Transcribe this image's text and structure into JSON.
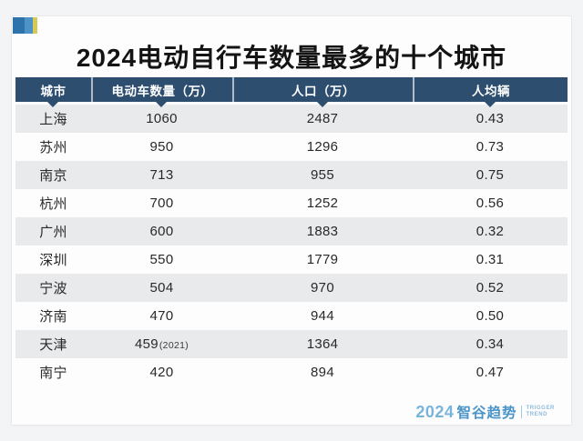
{
  "page": {
    "title": "2024电动自行车数量最多的十个城市"
  },
  "colors": {
    "header_navy": "#2d4e6e",
    "row_alt_gray": "#e9eaec",
    "icon_blue_dark": "#2e72ab",
    "icon_blue_light": "#4e93c6",
    "icon_yellow": "#d6c954",
    "logo_blue": "#4a94c8",
    "logo_light_blue": "#79b5da"
  },
  "chart_data": {
    "type": "table",
    "title": "2024电动自行车数量最多的十个城市",
    "columns": [
      "城市",
      "电动车数量（万）",
      "人口（万）",
      "人均辆"
    ],
    "rows": [
      {
        "city": "上海",
        "ebikes": "1060",
        "note": "",
        "population": "2487",
        "per_capita": "0.43"
      },
      {
        "city": "苏州",
        "ebikes": "950",
        "note": "",
        "population": "1296",
        "per_capita": "0.73"
      },
      {
        "city": "南京",
        "ebikes": "713",
        "note": "",
        "population": "955",
        "per_capita": "0.75"
      },
      {
        "city": "杭州",
        "ebikes": "700",
        "note": "",
        "population": "1252",
        "per_capita": "0.56"
      },
      {
        "city": "广州",
        "ebikes": "600",
        "note": "",
        "population": "1883",
        "per_capita": "0.32"
      },
      {
        "city": "深圳",
        "ebikes": "550",
        "note": "",
        "population": "1779",
        "per_capita": "0.31"
      },
      {
        "city": "宁波",
        "ebikes": "504",
        "note": "",
        "population": "970",
        "per_capita": "0.52"
      },
      {
        "city": "济南",
        "ebikes": "470",
        "note": "",
        "population": "944",
        "per_capita": "0.50"
      },
      {
        "city": "天津",
        "ebikes": "459",
        "note": "(2021)",
        "population": "1364",
        "per_capita": "0.34"
      },
      {
        "city": "南宁",
        "ebikes": "420",
        "note": "",
        "population": "894",
        "per_capita": "0.47"
      }
    ]
  },
  "footer": {
    "logo_year": "2024",
    "logo_brand": "智谷趋势",
    "logo_tagline_top": "TRIGGER",
    "logo_tagline_bottom": "TREND"
  }
}
